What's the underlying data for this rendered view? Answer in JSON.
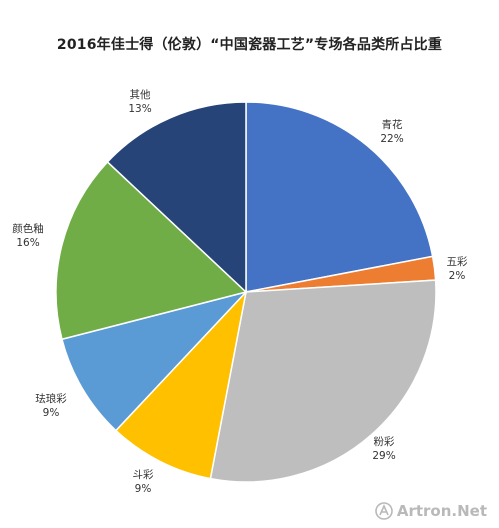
{
  "chart_data": {
    "type": "pie",
    "title": "2016年佳士得（伦敦）“中国瓷器工艺”专场各品类所占比重",
    "slices": [
      {
        "label": "青花",
        "value": 22,
        "value_label": "22%",
        "color": "#4472C4"
      },
      {
        "label": "五彩",
        "value": 2,
        "value_label": "2%",
        "color": "#ED7D31"
      },
      {
        "label": "粉彩",
        "value": 29,
        "value_label": "29%",
        "color": "#BEBEBE"
      },
      {
        "label": "斗彩",
        "value": 9,
        "value_label": "9%",
        "color": "#FFC000"
      },
      {
        "label": "珐琅彩",
        "value": 9,
        "value_label": "9%",
        "color": "#5B9BD5"
      },
      {
        "label": "颜色釉",
        "value": 16,
        "value_label": "16%",
        "color": "#70AD47"
      },
      {
        "label": "其他",
        "value": 13,
        "value_label": "13%",
        "color": "#264478"
      }
    ],
    "start": "12 o'clock",
    "direction": "clockwise"
  },
  "watermark": {
    "text": "Artron.Net"
  }
}
